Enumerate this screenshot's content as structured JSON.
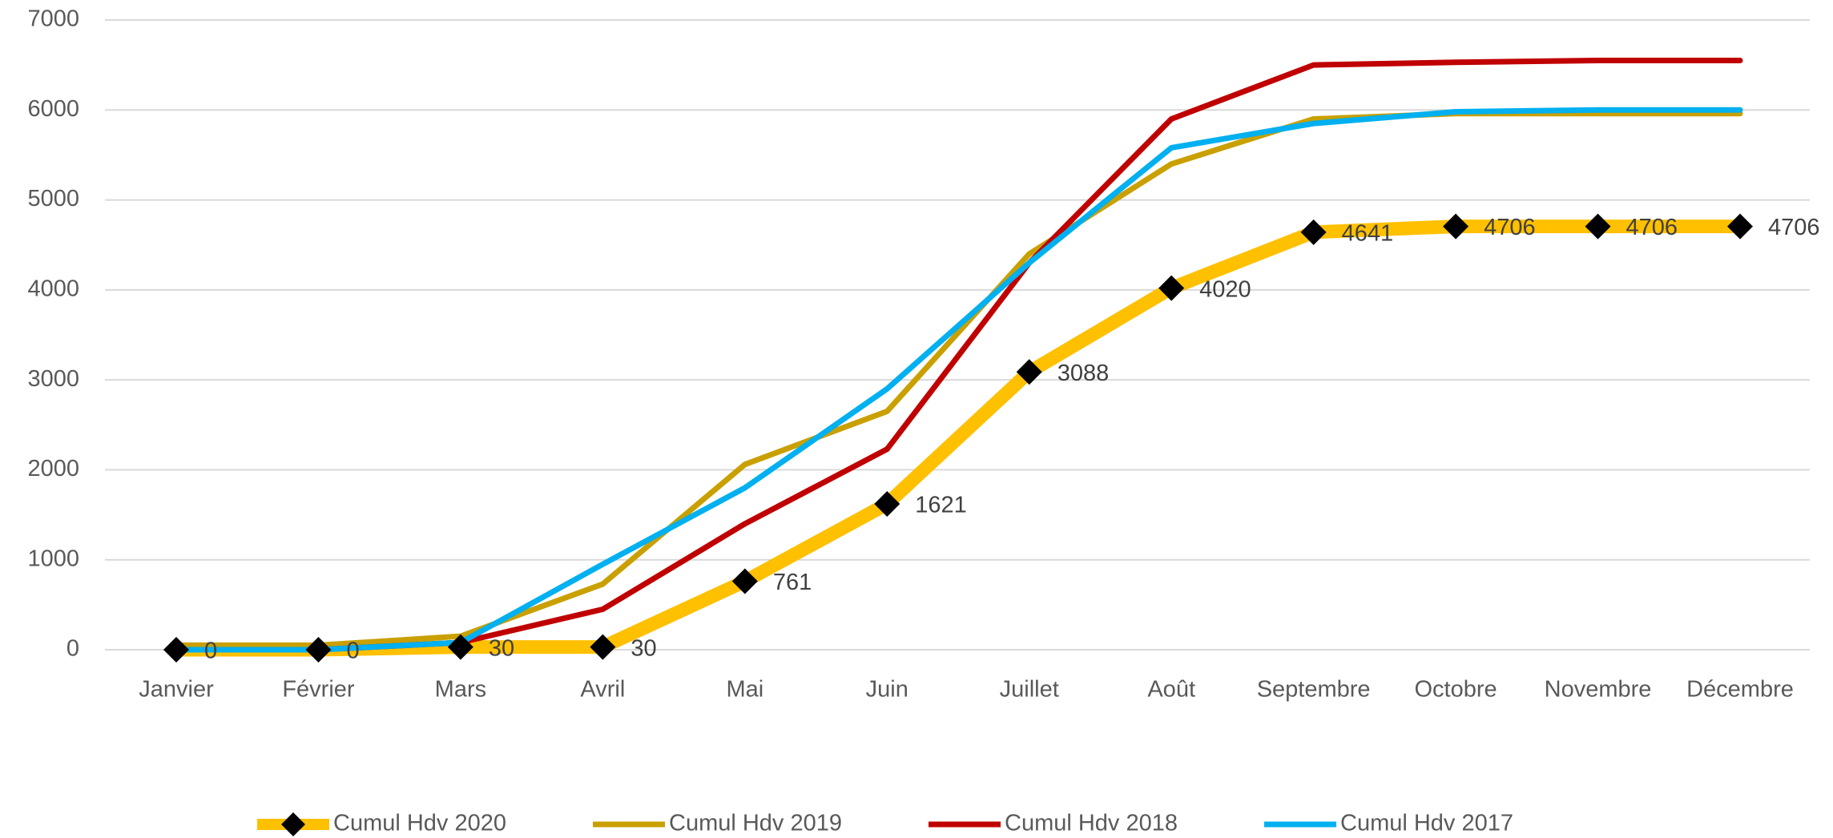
{
  "chart_data": {
    "type": "line",
    "categories": [
      "Janvier",
      "Février",
      "Mars",
      "Avril",
      "Mai",
      "Juin",
      "Juillet",
      "Août",
      "Septembre",
      "Octobre",
      "Novembre",
      "Décembre"
    ],
    "series": [
      {
        "name": "Cumul Hdv 2020",
        "color": "#ffc000",
        "marker": "diamond",
        "data_labels": true,
        "values": [
          0,
          0,
          30,
          30,
          761,
          1621,
          3088,
          4020,
          4641,
          4706,
          4706,
          4706
        ]
      },
      {
        "name": "Cumul Hdv 2019",
        "color": "#c9a000",
        "values": [
          50,
          50,
          150,
          730,
          2060,
          2650,
          4400,
          5400,
          5900,
          5960,
          5960,
          5960
        ]
      },
      {
        "name": "Cumul Hdv 2018",
        "color": "#c00000",
        "values": [
          0,
          0,
          80,
          450,
          1400,
          2230,
          4300,
          5900,
          6500,
          6530,
          6550,
          6550
        ]
      },
      {
        "name": "Cumul Hdv 2017",
        "color": "#00b0f0",
        "values": [
          0,
          0,
          80,
          950,
          1800,
          2900,
          4300,
          5580,
          5850,
          5980,
          6000,
          6000
        ]
      }
    ],
    "ylim": [
      0,
      7000
    ],
    "yticks": [
      0,
      1000,
      2000,
      3000,
      4000,
      5000,
      6000,
      7000
    ],
    "grid": true,
    "legend": "bottom"
  }
}
